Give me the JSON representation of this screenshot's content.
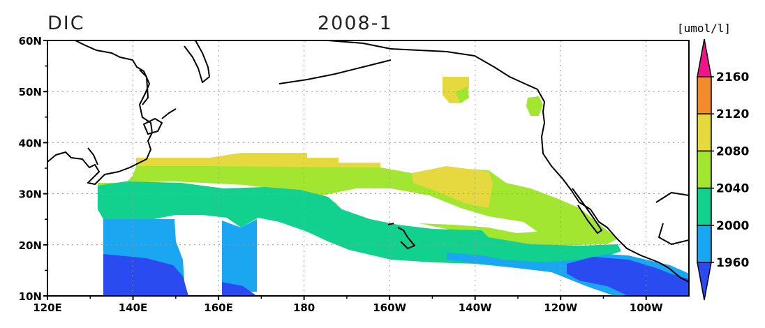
{
  "header": {
    "variable": "DIC",
    "date": "2008-1",
    "units": "[umol/l]"
  },
  "chart_data": {
    "type": "heatmap",
    "variable": "DIC",
    "date": "2008-1",
    "units": "[umol/l]",
    "lon_range": [
      120,
      270
    ],
    "lat_range": [
      10,
      60
    ],
    "x_ticks": [
      {
        "lon": 120,
        "label": "120E"
      },
      {
        "lon": 140,
        "label": "140E"
      },
      {
        "lon": 160,
        "label": "160E"
      },
      {
        "lon": 180,
        "label": "180"
      },
      {
        "lon": 200,
        "label": "160W"
      },
      {
        "lon": 220,
        "label": "140W"
      },
      {
        "lon": 240,
        "label": "120W"
      },
      {
        "lon": 260,
        "label": "100W"
      }
    ],
    "y_ticks": [
      {
        "lat": 10,
        "label": "10N"
      },
      {
        "lat": 20,
        "label": "20N"
      },
      {
        "lat": 30,
        "label": "30N"
      },
      {
        "lat": 40,
        "label": "40N"
      },
      {
        "lat": 50,
        "label": "50N"
      },
      {
        "lat": 60,
        "label": "60N"
      }
    ],
    "grid": true,
    "colorbar": {
      "position": "right",
      "levels": [
        1960,
        2000,
        2040,
        2080,
        2120,
        2160
      ],
      "bins": [
        {
          "label": "<1960",
          "color": "#2a4bf0"
        },
        {
          "label": "1960-2000",
          "color": "#1aa6f0"
        },
        {
          "label": "2000-2040",
          "color": "#12d08e"
        },
        {
          "label": "2040-2080",
          "color": "#a3e632"
        },
        {
          "label": "2080-2120",
          "color": "#e6d940"
        },
        {
          "label": "2120-2160",
          "color": "#f28a2e"
        },
        {
          "label": ">2160",
          "color": "#f0148a"
        }
      ]
    }
  }
}
